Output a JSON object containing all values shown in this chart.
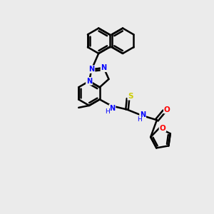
{
  "background_color": "#ebebeb",
  "bond_color": "#000000",
  "bond_width": 1.8,
  "atom_colors": {
    "N": "#0000ff",
    "O": "#ff0000",
    "S": "#cccc00",
    "C": "#000000",
    "H": "#666666"
  },
  "figsize": [
    3.0,
    3.0
  ],
  "dpi": 100
}
